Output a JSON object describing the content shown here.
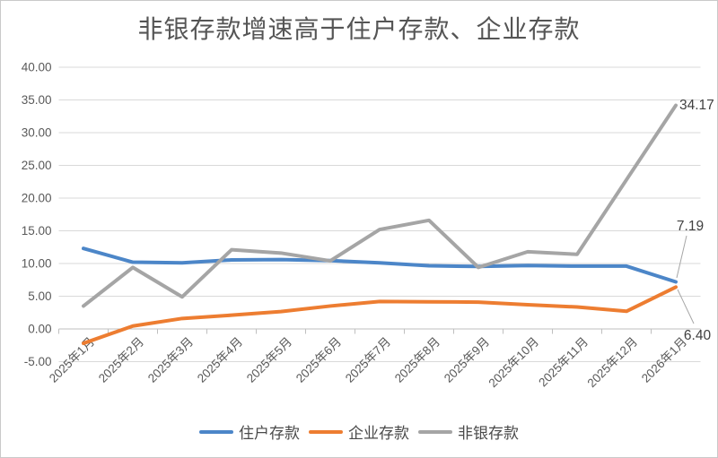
{
  "page": {
    "background": "#ffffff",
    "border_color": "#c9c9c9"
  },
  "chart_data": {
    "type": "line",
    "title": "非银存款增速高于住户存款、企业存款",
    "categories": [
      "2025年1月",
      "2025年2月",
      "2025年3月",
      "2025年4月",
      "2025年5月",
      "2025年6月",
      "2025年7月",
      "2025年8月",
      "2025年9月",
      "2025年10月",
      "2025年11月",
      "2025年12月",
      "2026年1月"
    ],
    "series": [
      {
        "name": "住户存款",
        "color": "#4C86C8",
        "values": [
          12.3,
          10.2,
          10.1,
          10.55,
          10.6,
          10.45,
          10.1,
          9.65,
          9.55,
          9.7,
          9.6,
          9.6,
          7.19
        ],
        "end_label": "7.19"
      },
      {
        "name": "企业存款",
        "color": "#ED7D31",
        "values": [
          -2.2,
          0.45,
          1.6,
          2.1,
          2.65,
          3.5,
          4.2,
          4.15,
          4.1,
          3.7,
          3.35,
          2.7,
          6.4
        ],
        "end_label": "6.40"
      },
      {
        "name": "非银存款",
        "color": "#A5A5A5",
        "values": [
          3.5,
          9.4,
          4.9,
          12.1,
          11.6,
          10.4,
          15.2,
          16.6,
          9.4,
          11.8,
          11.4,
          22.8,
          34.17
        ],
        "end_label": "34.17"
      }
    ],
    "y_ticks": [
      "40.00",
      "35.00",
      "30.00",
      "25.00",
      "20.00",
      "15.00",
      "10.00",
      "5.00",
      "0.00",
      "-5.00"
    ],
    "ylim": [
      -5,
      40
    ],
    "grid": true,
    "legend_position": "bottom",
    "colors": {
      "gridline": "#D9D9D9",
      "axis": "#BFBFBF",
      "tick_label": "#595959",
      "data_label": "#404040",
      "leader_line": "#A6A6A6"
    }
  }
}
